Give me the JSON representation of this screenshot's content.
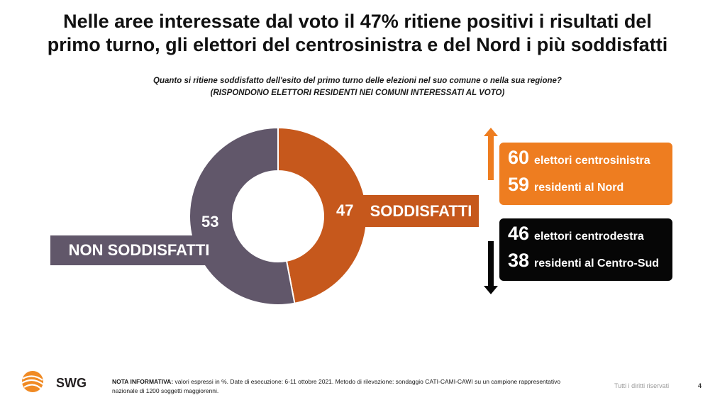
{
  "title": {
    "line1": "Nelle aree interessate dal voto il 47% ritiene positivi i risultati del",
    "line2": "primo turno, gli elettori del centrosinistra e del Nord i più soddisfatti"
  },
  "question": {
    "line1": "Quanto si ritiene soddisfatto dell'esito del primo turno delle elezioni nel suo comune o nella sua regione?",
    "line2": "(RISPONDONO ELETTORI RESIDENTI NEI COMUNI INTERESSATI AL VOTO)"
  },
  "chart_data": {
    "type": "pie",
    "variant": "donut",
    "slices": [
      {
        "label": "SODDISFATTI",
        "value": 47,
        "color": "#c6581c"
      },
      {
        "label": "NON SODDISFATTI",
        "value": 53,
        "color": "#61576a"
      }
    ],
    "unit": "%",
    "breakdown_satisfied_high": [
      {
        "value": 60,
        "label": "elettori centrosinistra"
      },
      {
        "value": 59,
        "label": "residenti al Nord"
      }
    ],
    "breakdown_satisfied_low": [
      {
        "value": 46,
        "label": "elettori centrodestra"
      },
      {
        "value": 38,
        "label": "residenti al Centro-Sud"
      }
    ]
  },
  "colors": {
    "satisfied": "#c6581c",
    "not_satisfied": "#61576a",
    "panel_high": "#ee7d20",
    "panel_low": "#060606"
  },
  "footer": {
    "note_label": "NOTA INFORMATIVA:",
    "note_text": " valori espressi in %. Date di esecuzione: 6-11 ottobre 2021. Metodo di rilevazione: sondaggio CATI-CAMI-CAWI su un campione rappresentativo nazionale di 1200 soggetti maggiorenni.",
    "rights": "Tutti i diritti riservati",
    "page_number": "4",
    "logo_text": "SWG"
  }
}
